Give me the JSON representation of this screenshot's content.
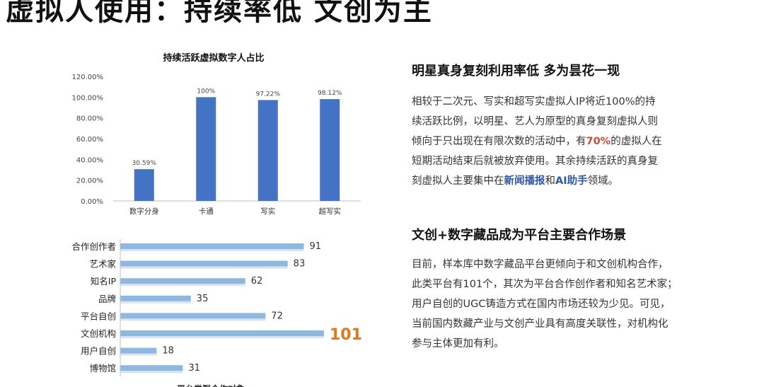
{
  "page": {
    "title": "虚拟人使用：持续率低 文创为主"
  },
  "section1": {
    "heading": "明星真身复刻利用率低 多为昙花一现",
    "lines": [
      [
        {
          "t": "相较于二次元、写实和超写实虚拟人IP将近100%的持"
        }
      ],
      [
        {
          "t": "续活跃比例，以明星、艺人为原型的真身复刻虚拟人则"
        }
      ],
      [
        {
          "t": "倾向于只出现在有限次数的活动中，有"
        },
        {
          "t": "70%",
          "hl": "red"
        },
        {
          "t": "的虚拟人在"
        }
      ],
      [
        {
          "t": "短期活动结束后就被放弃使用。其余持续活跃的真身复"
        }
      ],
      [
        {
          "t": "刻虚拟人主要集中在"
        },
        {
          "t": "新闻播报",
          "hl": "blue"
        },
        {
          "t": "和"
        },
        {
          "t": "AI助手",
          "hl": "blue"
        },
        {
          "t": "领域。"
        }
      ]
    ]
  },
  "section2": {
    "heading": "文创+数字藏品成为平台主要合作场景",
    "lines": [
      [
        {
          "t": "目前，样本库中数字藏品平台更倾向于和文创机构合作，"
        }
      ],
      [
        {
          "t": "此类平台有101个，其次为平台合作创作者和知名艺术家；"
        }
      ],
      [
        {
          "t": "用户自创的UGC铸造方式在国内市场还较为少见。可见，"
        }
      ],
      [
        {
          "t": "当前国内数藏产业与文创产业具有高度关联性，对机构化"
        }
      ],
      [
        {
          "t": "参与主体更加有利。"
        }
      ]
    ]
  },
  "chart_data": [
    {
      "type": "bar",
      "title": "持续活跃虚拟数字人占比",
      "categories": [
        "数字分身",
        "卡通",
        "写实",
        "超写实"
      ],
      "values": [
        30.59,
        100,
        97.22,
        98.12
      ],
      "value_labels": [
        "30.59%",
        "100%",
        "97.22%",
        "98.12%"
      ],
      "ylim": [
        0,
        120
      ],
      "yticks": [
        "0.00%",
        "20.00%",
        "40.00%",
        "60.00%",
        "80.00%",
        "100.00%",
        "120.00%"
      ],
      "grid": false,
      "color": "#4472c4"
    },
    {
      "type": "bar",
      "orientation": "horizontal",
      "caption": "平台类型合作对象",
      "categories": [
        "合作创作者",
        "艺术家",
        "知名IP",
        "品牌",
        "平台自创",
        "文创机构",
        "用户自创",
        "博物馆"
      ],
      "values": [
        91,
        83,
        62,
        35,
        72,
        101,
        18,
        31
      ],
      "highlight_index": 5,
      "xlim": [
        0,
        101
      ],
      "color": "#8fb8e0",
      "highlight_color": "#e0781e"
    }
  ]
}
